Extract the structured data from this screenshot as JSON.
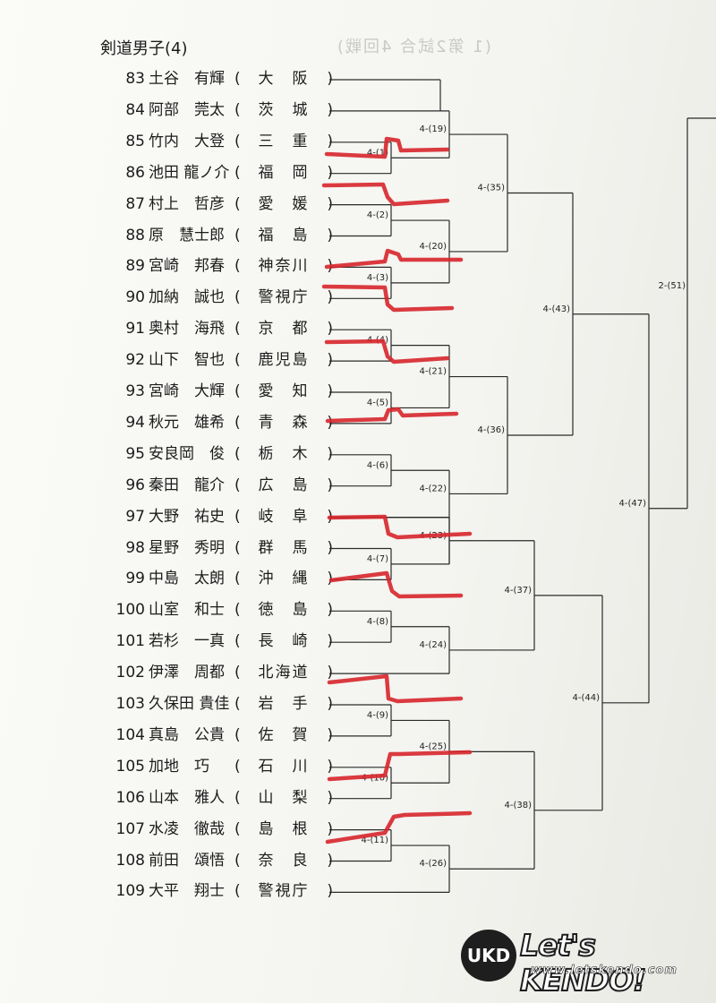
{
  "title": "剣道男子(4)",
  "ghost_text": "(1 第2試合 4回戦)",
  "competitors": [
    {
      "no": "83",
      "name": "土谷　有輝",
      "pref": "大　阪"
    },
    {
      "no": "84",
      "name": "阿部　莞太",
      "pref": "茨　城"
    },
    {
      "no": "85",
      "name": "竹内　大登",
      "pref": "三　重"
    },
    {
      "no": "86",
      "name": "池田 龍ノ介",
      "pref": "福　岡"
    },
    {
      "no": "87",
      "name": "村上　哲彦",
      "pref": "愛　媛"
    },
    {
      "no": "88",
      "name": "原　慧士郎",
      "pref": "福　島"
    },
    {
      "no": "89",
      "name": "宮崎　邦春",
      "pref": "神奈川"
    },
    {
      "no": "90",
      "name": "加納　誠也",
      "pref": "警視庁"
    },
    {
      "no": "91",
      "name": "奥村　海飛",
      "pref": "京　都"
    },
    {
      "no": "92",
      "name": "山下　智也",
      "pref": "鹿児島"
    },
    {
      "no": "93",
      "name": "宮崎　大輝",
      "pref": "愛　知"
    },
    {
      "no": "94",
      "name": "秋元　雄希",
      "pref": "青　森"
    },
    {
      "no": "95",
      "name": "安良岡　俊",
      "pref": "栃　木"
    },
    {
      "no": "96",
      "name": "秦田　龍介",
      "pref": "広　島"
    },
    {
      "no": "97",
      "name": "大野　祐史",
      "pref": "岐　阜"
    },
    {
      "no": "98",
      "name": "星野　秀明",
      "pref": "群　馬"
    },
    {
      "no": "99",
      "name": "中島　太朗",
      "pref": "沖　縄"
    },
    {
      "no": "100",
      "name": "山室　和士",
      "pref": "徳　島"
    },
    {
      "no": "101",
      "name": "若杉　一真",
      "pref": "長　崎"
    },
    {
      "no": "102",
      "name": "伊澤　周都",
      "pref": "北海道"
    },
    {
      "no": "103",
      "name": "久保田 貴佳",
      "pref": "岩　手"
    },
    {
      "no": "104",
      "name": "真島　公貴",
      "pref": "佐　賀"
    },
    {
      "no": "105",
      "name": "加地　巧",
      "pref": "石　川"
    },
    {
      "no": "106",
      "name": "山本　雅人",
      "pref": "山　梨"
    },
    {
      "no": "107",
      "name": "水凌　徹哉",
      "pref": "島　根"
    },
    {
      "no": "108",
      "name": "前田　頌悟",
      "pref": "奈　良"
    },
    {
      "no": "109",
      "name": "大平　翔士",
      "pref": "警視庁"
    }
  ],
  "match_labels": {
    "m1": "4-(1)",
    "m2": "4-(2)",
    "m3": "4-(3)",
    "m4": "4-(4)",
    "m5": "4-(5)",
    "m6": "4-(6)",
    "m7": "4-(7)",
    "m8": "4-(8)",
    "m9": "4-(9)",
    "m10": "4-(10)",
    "m11": "4-(11)",
    "m19": "4-(19)",
    "m20": "4-(20)",
    "m21": "4-(21)",
    "m22": "4-(22)",
    "m23": "4-(23)",
    "m24": "4-(24)",
    "m25": "4-(25)",
    "m26": "4-(26)",
    "m35": "4-(35)",
    "m36": "4-(36)",
    "m37": "4-(37)",
    "m38": "4-(38)",
    "m43": "4-(43)",
    "m44": "4-(44)",
    "m47": "4-(47)",
    "m51": "2-(51)"
  },
  "logo": {
    "mark": "UKD",
    "text": "Let's KENDO!",
    "url": "www.letskendo.com"
  },
  "colors": {
    "ink": "#1c1c1c",
    "marker": "#d7262b",
    "paper": "#f7f7f3"
  }
}
